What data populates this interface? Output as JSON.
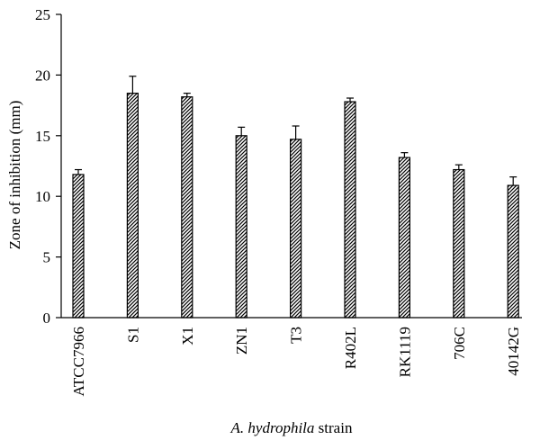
{
  "chart_data": {
    "type": "bar",
    "categories": [
      "ATCC7966",
      "S1",
      "X1",
      "ZN1",
      "T3",
      "R402L",
      "RK1119",
      "706C",
      "40142G"
    ],
    "values": [
      11.8,
      18.5,
      18.2,
      15.0,
      14.7,
      17.8,
      13.2,
      12.2,
      10.9
    ],
    "errors": [
      0.4,
      1.4,
      0.3,
      0.7,
      1.1,
      0.3,
      0.4,
      0.4,
      0.7
    ],
    "yticks": [
      0,
      5,
      10,
      15,
      20,
      25
    ],
    "ylim": [
      0,
      25
    ],
    "ylabel": "Zone of inhibition (mm)",
    "xlabel_italic": "A. hydrophila",
    "xlabel_rest": " strain",
    "grid": false,
    "bar_pattern": "diagonal-hatch",
    "colors": {
      "bar_stroke": "#000000",
      "hatch": "#000000",
      "background": "#ffffff"
    }
  }
}
